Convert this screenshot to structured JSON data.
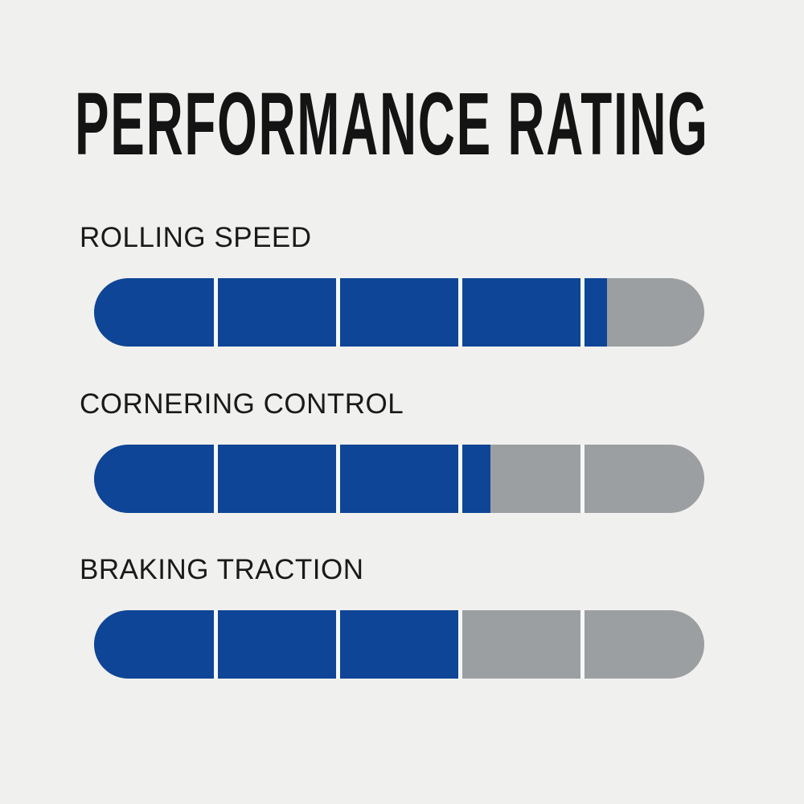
{
  "title": "PERFORMANCE RATING",
  "bars": [
    {
      "label": "ROLLING SPEED",
      "rating": 4.2,
      "max": 5,
      "fill_percent": 84
    },
    {
      "label": "CORNERING CONTROL",
      "rating": 3.2,
      "max": 5,
      "fill_percent": 65
    },
    {
      "label": "BRAKING TRACTION",
      "rating": 3.0,
      "max": 5,
      "fill_percent": 60
    }
  ],
  "colors": {
    "fill": "#0e4596",
    "track": "#9c9fa1",
    "separator": "#f5f7f8",
    "background": "#f0f0ee",
    "text": "#141414"
  },
  "chart_data": {
    "type": "bar",
    "orientation": "horizontal",
    "title": "PERFORMANCE RATING",
    "categories": [
      "ROLLING SPEED",
      "CORNERING CONTROL",
      "BRAKING TRACTION"
    ],
    "values": [
      4.2,
      3.2,
      3.0
    ],
    "xlim": [
      0,
      5
    ],
    "segments_per_bar": 5,
    "xlabel": "",
    "ylabel": "",
    "legend": false,
    "grid": false,
    "bar_fill_color": "#0e4596",
    "bar_track_color": "#9c9fa1"
  }
}
